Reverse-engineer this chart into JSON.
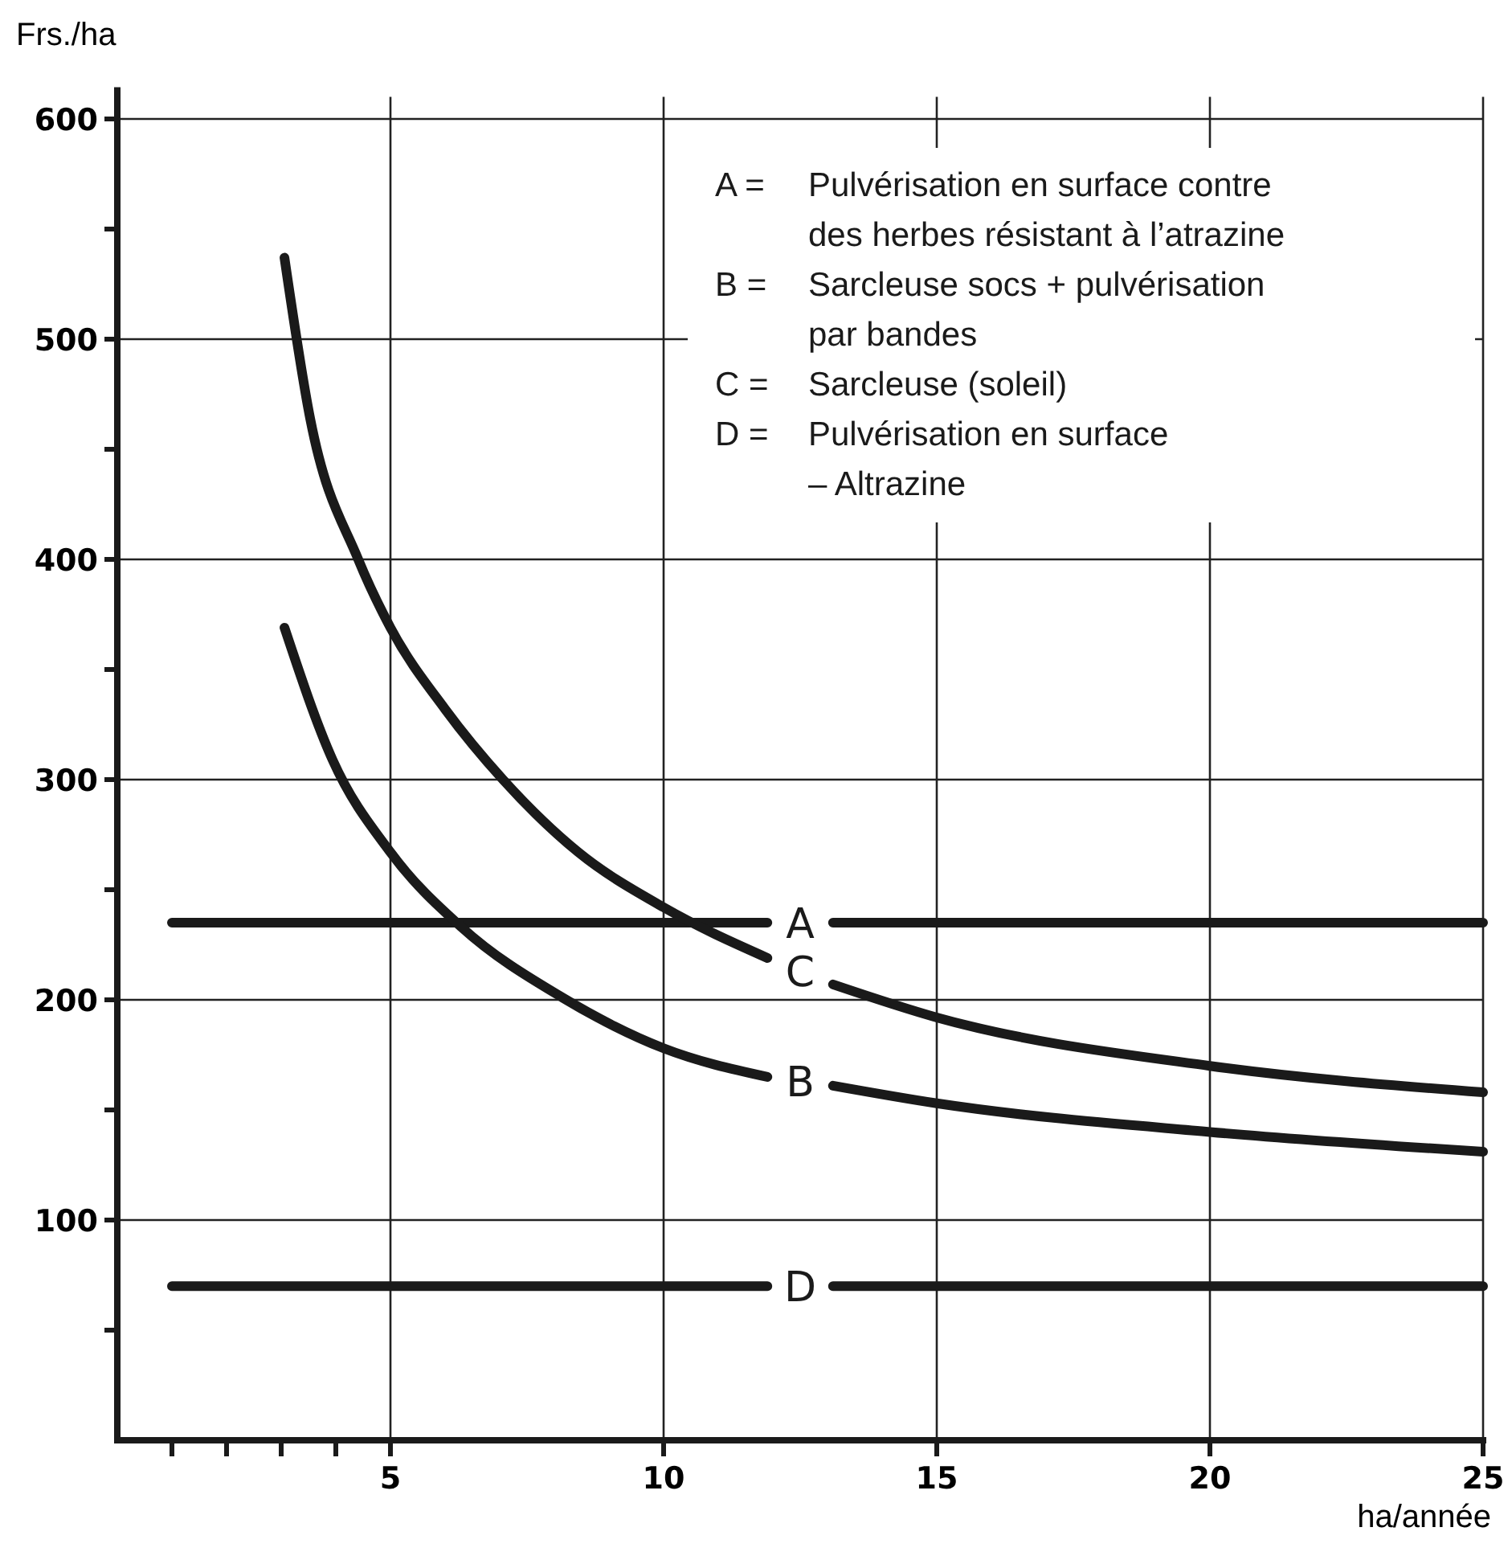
{
  "chart_data": {
    "type": "line",
    "xlabel": "ha/année",
    "ylabel": "Frs./ha",
    "xlim": [
      0,
      25
    ],
    "ylim": [
      0,
      610
    ],
    "xticks": [
      {
        "value": 1,
        "label": null
      },
      {
        "value": 2,
        "label": null
      },
      {
        "value": 3,
        "label": null
      },
      {
        "value": 4,
        "label": null
      },
      5,
      10,
      15,
      20,
      25
    ],
    "yticks": [
      {
        "value": 50,
        "label": null
      },
      100,
      {
        "value": 150,
        "label": null
      },
      200,
      {
        "value": 250,
        "label": null
      },
      300,
      {
        "value": 350,
        "label": null
      },
      400,
      {
        "value": 450,
        "label": null
      },
      500,
      {
        "value": 550,
        "label": null
      },
      600
    ],
    "grid": true,
    "marker": "none",
    "line_style": "solid",
    "annotations": [
      "A = Pulvérisation en surface contre\ndes herbes résistant à l’atrazine",
      "B = Sarcleuse socs + pulvérisation\npar bandes",
      "C = Sarcleuse (soleil)",
      "D = Pulvérisation en surface\n– Altrazine"
    ],
    "series": [
      {
        "name": "A",
        "color": "#1a1a1a",
        "x": [
          1,
          11.9,
          12.5,
          13.1,
          25
        ],
        "values": [
          235,
          235,
          null,
          235,
          235
        ]
      },
      {
        "name": "C",
        "color": "#1a1a1a",
        "x": [
          3.06,
          3.53,
          4.41,
          5,
          6,
          7.06,
          8.44,
          10,
          11.9,
          12.5,
          13.1,
          15,
          20,
          25
        ],
        "values": [
          537,
          464,
          400,
          369,
          332,
          300,
          267,
          242,
          219,
          null,
          207,
          192,
          170,
          158
        ]
      },
      {
        "name": "B",
        "color": "#1a1a1a",
        "x": [
          3.06,
          3.94,
          5,
          6.3,
          8.15,
          10,
          11.9,
          12.5,
          13.1,
          15,
          20,
          25
        ],
        "values": [
          369,
          309,
          267,
          233,
          201,
          178,
          165,
          null,
          161,
          153,
          140,
          131
        ]
      },
      {
        "name": "D",
        "color": "#1a1a1a",
        "x": [
          1,
          11.9,
          12.5,
          13.1,
          25
        ],
        "values": [
          70,
          70,
          null,
          70,
          70
        ]
      }
    ]
  }
}
